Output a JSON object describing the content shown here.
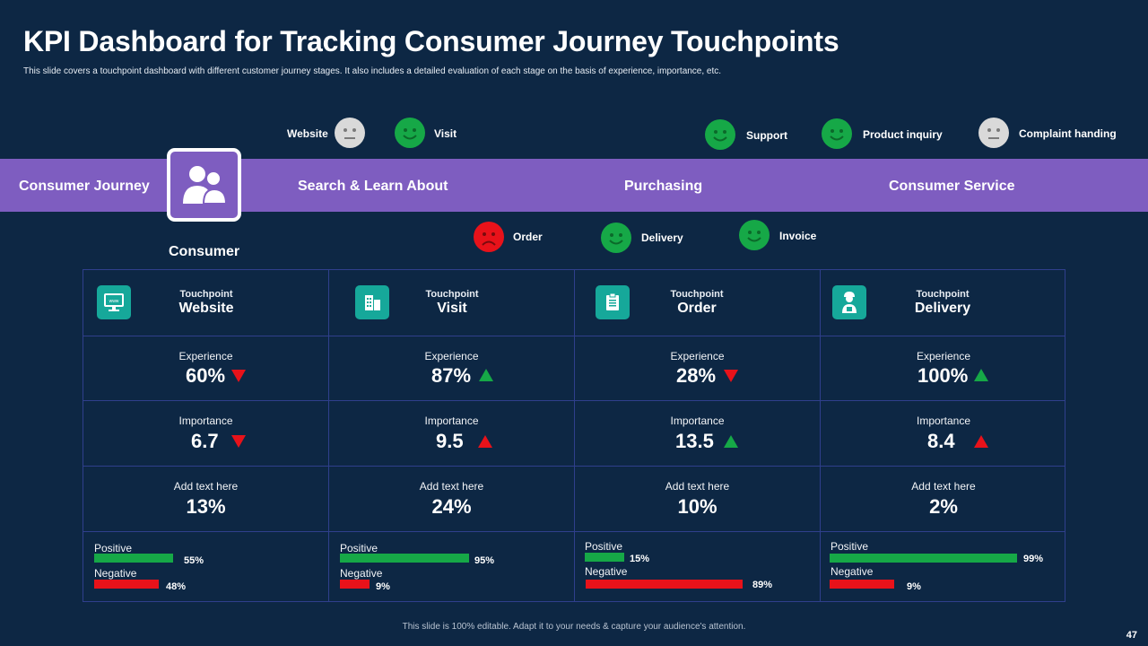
{
  "title": "KPI Dashboard for Tracking Consumer Journey Touchpoints",
  "subtitle": "This slide covers a touchpoint dashboard with different customer journey stages. It also includes a detailed evaluation of each stage on the basis of experience, importance, etc.",
  "colors": {
    "background": "#0d2744",
    "band": "#7e5dc0",
    "positive": "#16a847",
    "negative": "#e8121a",
    "icon_tile": "#16a89a",
    "neutral_face": "#d9d9d9"
  },
  "top_faces": [
    {
      "label": "Website",
      "mood": "neutral"
    },
    {
      "label": "Visit",
      "mood": "happy"
    },
    {
      "label": "Support",
      "mood": "happy"
    },
    {
      "label": "Product inquiry",
      "mood": "happy"
    },
    {
      "label": "Complaint handing",
      "mood": "neutral"
    }
  ],
  "bottom_faces": [
    {
      "label": "Order",
      "mood": "sad"
    },
    {
      "label": "Delivery",
      "mood": "happy"
    },
    {
      "label": "Invoice",
      "mood": "happy"
    }
  ],
  "band": {
    "journey": "Consumer Journey",
    "stage1": "Search & Learn About",
    "stage2": "Purchasing",
    "stage3": "Consumer Service"
  },
  "consumer_label": "Consumer",
  "touchpoints": [
    {
      "small": "Touchpoint",
      "name": "Website",
      "icon": "monitor-icon",
      "experience_label": "Experience",
      "experience": "60%",
      "experience_trend": "down",
      "importance_label": "Importance",
      "importance": "6.7",
      "importance_trend": "down",
      "extra_label": "Add text here",
      "extra": "13%",
      "positive_label": "Positive",
      "positive_pct": "55%",
      "positive_fraction": 0.55,
      "negative_label": "Negative",
      "negative_pct": "48%",
      "negative_fraction": 0.48
    },
    {
      "small": "Touchpoint",
      "name": "Visit",
      "icon": "building-icon",
      "experience_label": "Experience",
      "experience": "87%",
      "experience_trend": "up-green",
      "importance_label": "Importance",
      "importance": "9.5",
      "importance_trend": "up-red",
      "extra_label": "Add text here",
      "extra": "24%",
      "positive_label": "Positive",
      "positive_pct": "95%",
      "positive_fraction": 0.95,
      "negative_label": "Negative",
      "negative_pct": "9%",
      "negative_fraction": 0.09
    },
    {
      "small": "Touchpoint",
      "name": "Order",
      "icon": "clipboard-icon",
      "experience_label": "Experience",
      "experience": "28%",
      "experience_trend": "down",
      "importance_label": "Importance",
      "importance": "13.5",
      "importance_trend": "up-green",
      "extra_label": "Add text here",
      "extra": "10%",
      "positive_label": "Positive",
      "positive_pct": "15%",
      "positive_fraction": 0.15,
      "negative_label": "Negative",
      "negative_pct": "89%",
      "negative_fraction": 0.89
    },
    {
      "small": "Touchpoint",
      "name": "Delivery",
      "icon": "delivery-person-icon",
      "experience_label": "Experience",
      "experience": "100%",
      "experience_trend": "up-green",
      "importance_label": "Importance",
      "importance": "8.4",
      "importance_trend": "up-red",
      "extra_label": "Add text here",
      "extra": "2%",
      "positive_label": "Positive",
      "positive_pct": "99%",
      "positive_fraction": 0.99,
      "negative_label": "Negative",
      "negative_pct": "9%",
      "negative_fraction": 0.09
    }
  ],
  "footer": "This slide is 100% editable. Adapt it to your needs & capture your audience's attention.",
  "page_number": "47"
}
